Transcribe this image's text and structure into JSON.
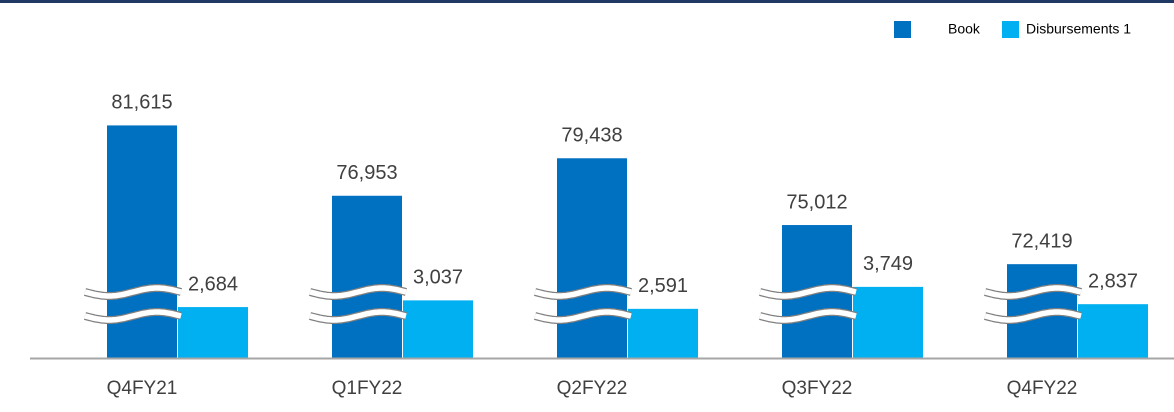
{
  "chart_data": {
    "type": "bar",
    "categories": [
      "Q4FY21",
      "Q1FY22",
      "Q2FY22",
      "Q3FY22",
      "Q4FY22"
    ],
    "series": [
      {
        "name": "Book",
        "color": "#0070c0",
        "values": [
          81615,
          76953,
          79438,
          75012,
          72419
        ],
        "value_labels": [
          "81,615",
          "76,953",
          "79,438",
          "75,012",
          "72,419"
        ]
      },
      {
        "name": "Disbursements 1",
        "color": "#00b0f0",
        "axis": "y2",
        "values": [
          2684,
          3037,
          2591,
          3749,
          2837
        ],
        "value_labels": [
          "2,684",
          "3,037",
          "2,591",
          "3,749",
          "2,837"
        ]
      }
    ],
    "ylim": [
      66200,
      83300
    ],
    "y2lim": [
      0,
      13600
    ],
    "legend": "top-right"
  }
}
